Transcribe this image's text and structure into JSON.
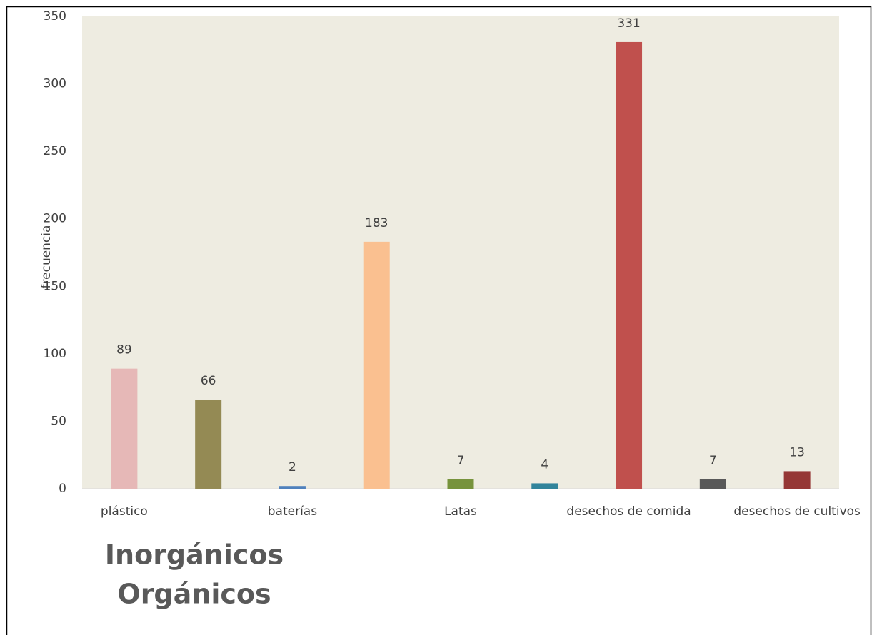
{
  "chart_data": {
    "type": "bar",
    "y_label": "frecuencia",
    "categories": [
      "plástico",
      null,
      "baterías",
      null,
      "Latas",
      null,
      "desechos de comida",
      null,
      "desechos de cultivos"
    ],
    "values": [
      89,
      66,
      2,
      183,
      7,
      4,
      331,
      7,
      13
    ],
    "colors": [
      "#e6b8b7",
      "#948a54",
      "#4f81bd",
      "#fac090",
      "#77933c",
      "#31849b",
      "#c0504d",
      "#595959",
      "#953735"
    ],
    "ylim": [
      0,
      350
    ],
    "yticks": [
      0,
      50,
      100,
      150,
      200,
      250,
      300,
      350
    ],
    "grid": false,
    "annotations": [
      "Inorgánicos",
      "Orgánicos"
    ]
  }
}
